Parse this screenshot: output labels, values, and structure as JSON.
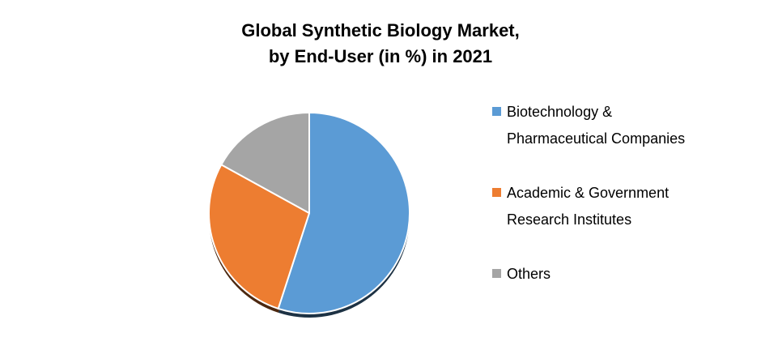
{
  "title": {
    "line1": "Global Synthetic Biology Market,",
    "line2": "by End-User (in %) in 2021"
  },
  "chart_data": {
    "type": "pie",
    "title": "Global Synthetic Biology Market, by End-User (in %) in 2021",
    "categories": [
      "Biotechnology & Pharmaceutical Companies",
      "Academic & Government Research Institutes",
      "Others"
    ],
    "values": [
      55,
      28,
      17
    ],
    "unit": "%",
    "colors": [
      "#5B9BD5",
      "#ED7D31",
      "#A5A5A5"
    ],
    "start_angle_deg": 0,
    "direction": "clockwise",
    "legend_position": "right",
    "grid": false
  },
  "legend": {
    "items": [
      {
        "label": "Biotechnology & Pharmaceutical Companies",
        "color": "#5B9BD5"
      },
      {
        "label": "Academic & Government Research Institutes",
        "color": "#ED7D31"
      },
      {
        "label": "Others",
        "color": "#A5A5A5"
      }
    ]
  }
}
